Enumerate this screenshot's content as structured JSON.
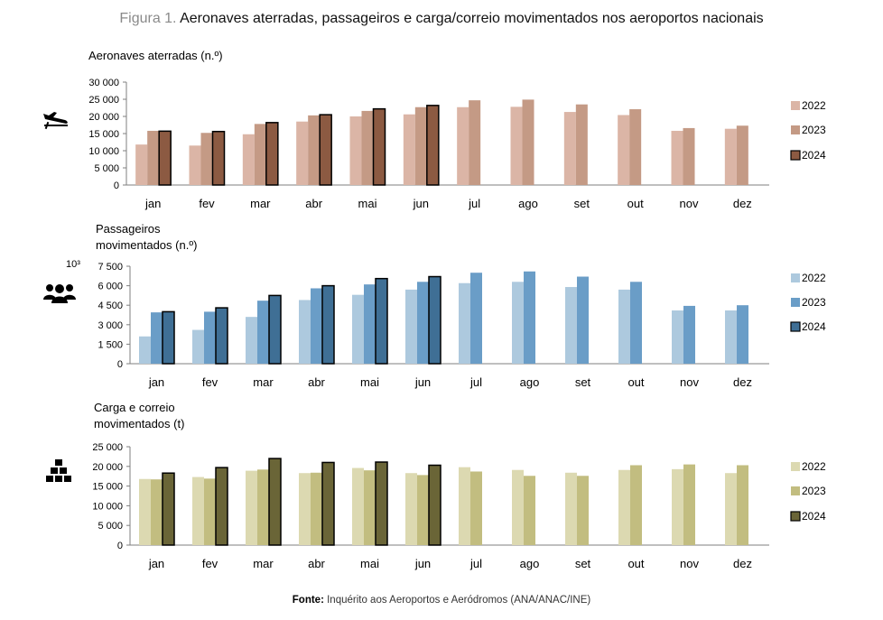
{
  "figure": {
    "label": "Figura 1.",
    "title": "Aeronaves aterradas, passageiros e carga/correio movimentados nos aeroportos nacionais",
    "source_label": "Fonte:",
    "source_text": "Inquérito aos Aeroportos e Aeródromos (ANA/ANAC/INE)"
  },
  "chart_data": [
    {
      "type": "bar",
      "title": "Aeronaves aterradas (n.º)",
      "title_lines": [
        "Aeronaves aterradas (n.º)"
      ],
      "icon": "airplane-landing-icon",
      "ylim": [
        0,
        30000
      ],
      "yticks": [
        0,
        5000,
        10000,
        15000,
        20000,
        25000,
        30000
      ],
      "ytick_labels": [
        "0",
        "5 000",
        "10 000",
        "15 000",
        "20 000",
        "25 000",
        "30 000"
      ],
      "unit_label": "",
      "categories": [
        "jan",
        "fev",
        "mar",
        "abr",
        "mai",
        "jun",
        "jul",
        "ago",
        "set",
        "out",
        "nov",
        "dez"
      ],
      "series": [
        {
          "name": "2022",
          "color": "#dbb5a6",
          "values": [
            11800,
            11500,
            14800,
            18500,
            20000,
            20600,
            22700,
            22800,
            21300,
            20400,
            15800,
            16400
          ]
        },
        {
          "name": "2023",
          "color": "#c49a85",
          "values": [
            15800,
            15200,
            17800,
            20300,
            21600,
            22700,
            24700,
            24900,
            23500,
            22100,
            16600,
            17300
          ]
        },
        {
          "name": "2024",
          "color": "#8c5a42",
          "values": [
            15700,
            15600,
            18200,
            20500,
            22200,
            23200,
            null,
            null,
            null,
            null,
            null,
            null
          ]
        }
      ]
    },
    {
      "type": "bar",
      "title": "Passageiros movimentados (n.º)",
      "title_lines": [
        "Passageiros",
        "movimentados (n.º)"
      ],
      "icon": "people-group-icon",
      "ylim": [
        0,
        7500
      ],
      "yticks": [
        0,
        1500,
        3000,
        4500,
        6000,
        7500
      ],
      "ytick_labels": [
        "0",
        "1 500",
        "3 000",
        "4 500",
        "6 000",
        "7 500"
      ],
      "unit_label": "10³",
      "categories": [
        "jan",
        "fev",
        "mar",
        "abr",
        "mai",
        "jun",
        "jul",
        "ago",
        "set",
        "out",
        "nov",
        "dez"
      ],
      "series": [
        {
          "name": "2022",
          "color": "#adc9de",
          "values": [
            2100,
            2600,
            3600,
            4900,
            5300,
            5700,
            6200,
            6300,
            5900,
            5700,
            4100,
            4100
          ]
        },
        {
          "name": "2023",
          "color": "#6a9dc7",
          "values": [
            3950,
            4000,
            4850,
            5800,
            6100,
            6300,
            7000,
            7100,
            6700,
            6300,
            4450,
            4500
          ]
        },
        {
          "name": "2024",
          "color": "#3f6f95",
          "values": [
            4000,
            4300,
            5250,
            6000,
            6550,
            6700,
            null,
            null,
            null,
            null,
            null,
            null
          ]
        }
      ]
    },
    {
      "type": "bar",
      "title": "Carga e correio movimentados (t)",
      "title_lines": [
        "Carga e correio",
        "movimentados (t)"
      ],
      "icon": "boxes-stack-icon",
      "ylim": [
        0,
        25000
      ],
      "yticks": [
        0,
        5000,
        10000,
        15000,
        20000,
        25000
      ],
      "ytick_labels": [
        "0",
        "5 000",
        "10 000",
        "15 000",
        "20 000",
        "25 000"
      ],
      "unit_label": "",
      "categories": [
        "jan",
        "fev",
        "mar",
        "abr",
        "mai",
        "jun",
        "jul",
        "ago",
        "set",
        "out",
        "nov",
        "dez"
      ],
      "series": [
        {
          "name": "2022",
          "color": "#dcd9b1",
          "values": [
            16800,
            17300,
            18900,
            18300,
            19600,
            18300,
            19800,
            19100,
            18400,
            19100,
            19300,
            18300
          ]
        },
        {
          "name": "2023",
          "color": "#c2bd80",
          "values": [
            16700,
            16900,
            19200,
            18400,
            19000,
            17800,
            18700,
            17600,
            17600,
            20300,
            20500,
            20300
          ]
        },
        {
          "name": "2024",
          "color": "#6a6537",
          "values": [
            18300,
            19700,
            22000,
            21000,
            21100,
            20300,
            null,
            null,
            null,
            null,
            null,
            null
          ]
        }
      ]
    }
  ]
}
